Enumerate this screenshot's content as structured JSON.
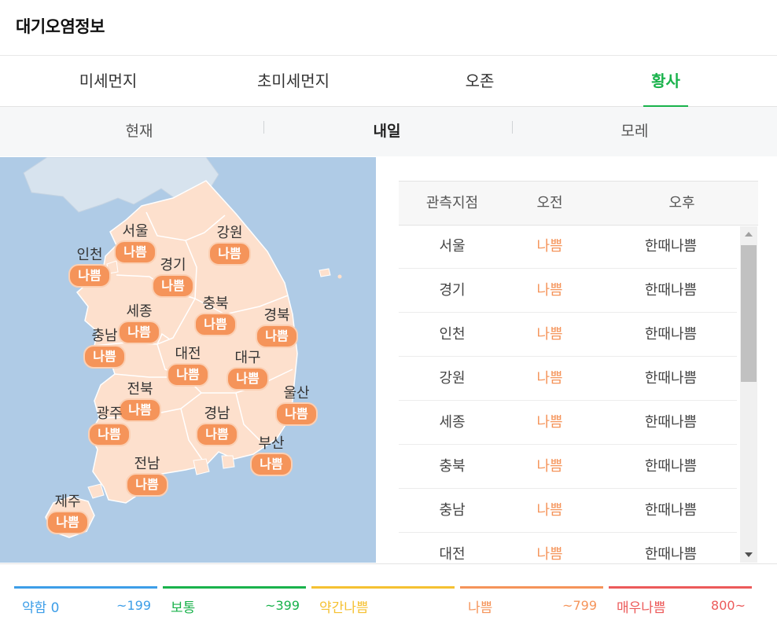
{
  "header": {
    "title": "대기오염정보"
  },
  "tabs": [
    {
      "label": "미세먼지",
      "active": false
    },
    {
      "label": "초미세먼지",
      "active": false
    },
    {
      "label": "오존",
      "active": false
    },
    {
      "label": "황사",
      "active": true
    }
  ],
  "subtabs": [
    {
      "label": "현재",
      "active": false
    },
    {
      "label": "내일",
      "active": true
    },
    {
      "label": "모레",
      "active": false
    }
  ],
  "map": {
    "regions": [
      {
        "name": "서울",
        "status": "나쁨"
      },
      {
        "name": "강원",
        "status": "나쁨"
      },
      {
        "name": "인천",
        "status": "나쁨"
      },
      {
        "name": "경기",
        "status": "나쁨"
      },
      {
        "name": "충북",
        "status": "나쁨"
      },
      {
        "name": "세종",
        "status": "나쁨"
      },
      {
        "name": "경북",
        "status": "나쁨"
      },
      {
        "name": "충남",
        "status": "나쁨"
      },
      {
        "name": "대전",
        "status": "나쁨"
      },
      {
        "name": "대구",
        "status": "나쁨"
      },
      {
        "name": "전북",
        "status": "나쁨"
      },
      {
        "name": "울산",
        "status": "나쁨"
      },
      {
        "name": "광주",
        "status": "나쁨"
      },
      {
        "name": "경남",
        "status": "나쁨"
      },
      {
        "name": "부산",
        "status": "나쁨"
      },
      {
        "name": "전남",
        "status": "나쁨"
      },
      {
        "name": "제주",
        "status": "나쁨"
      }
    ]
  },
  "table": {
    "headers": [
      "관측지점",
      "오전",
      "오후"
    ],
    "rows": [
      {
        "site": "서울",
        "am": "나쁨",
        "pm": "한때나쁨"
      },
      {
        "site": "경기",
        "am": "나쁨",
        "pm": "한때나쁨"
      },
      {
        "site": "인천",
        "am": "나쁨",
        "pm": "한때나쁨"
      },
      {
        "site": "강원",
        "am": "나쁨",
        "pm": "한때나쁨"
      },
      {
        "site": "세종",
        "am": "나쁨",
        "pm": "한때나쁨"
      },
      {
        "site": "충북",
        "am": "나쁨",
        "pm": "한때나쁨"
      },
      {
        "site": "충남",
        "am": "나쁨",
        "pm": "한때나쁨"
      },
      {
        "site": "대전",
        "am": "나쁨",
        "pm": "한때나쁨"
      }
    ]
  },
  "legend": [
    {
      "name": "약함 0",
      "range": "~199",
      "color": "#3d9ee8"
    },
    {
      "name": "보통",
      "range": "~399",
      "color": "#19b24b"
    },
    {
      "name": "약간나쁨",
      "range": "",
      "color": "#f5c132"
    },
    {
      "name": "나쁨",
      "range": "~799",
      "color": "#f5945a"
    },
    {
      "name": "매우나쁨",
      "range": "800~",
      "color": "#ec5a5a"
    }
  ],
  "colors": {
    "accent": "#19b24b",
    "bad": "#f5945a",
    "land": "#fde0cd",
    "sea": "#afcbe6"
  }
}
